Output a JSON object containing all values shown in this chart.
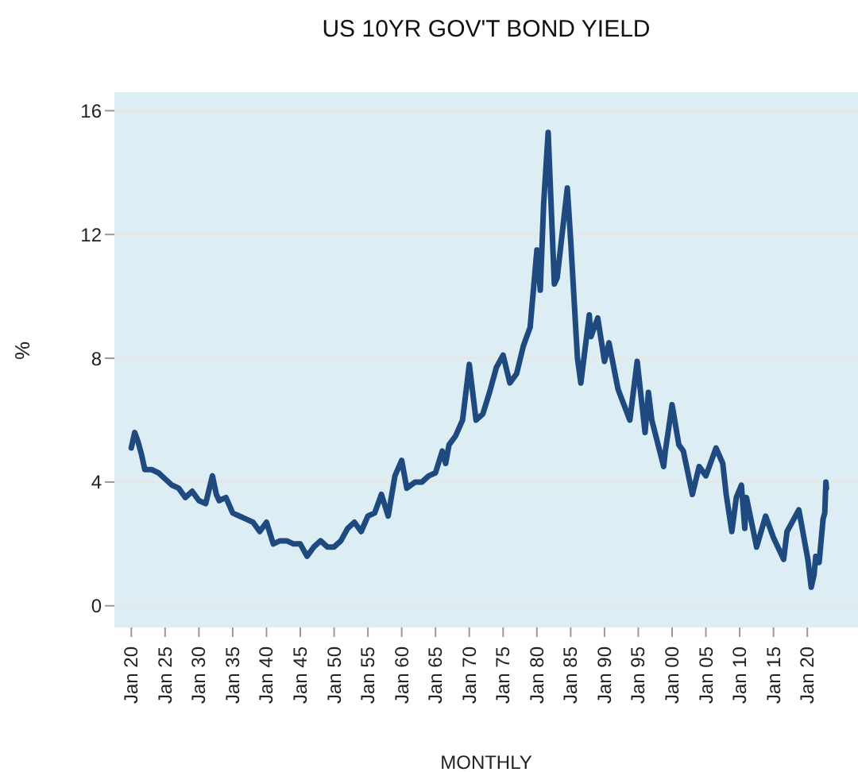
{
  "chart_data": {
    "type": "line",
    "title": "US 10YR GOV'T BOND YIELD",
    "xlabel": "MONTHLY",
    "ylabel": "%",
    "x": [
      "1920-01",
      "1920-07",
      "1921-01",
      "1921-07",
      "1922-01",
      "1923-01",
      "1924-01",
      "1925-01",
      "1926-01",
      "1927-01",
      "1928-01",
      "1929-01",
      "1930-01",
      "1931-01",
      "1932-01",
      "1932-08",
      "1933-01",
      "1934-01",
      "1935-01",
      "1936-01",
      "1937-01",
      "1938-01",
      "1939-01",
      "1940-01",
      "1941-01",
      "1942-01",
      "1943-01",
      "1944-01",
      "1945-01",
      "1946-01",
      "1947-01",
      "1948-01",
      "1949-01",
      "1950-01",
      "1951-01",
      "1952-01",
      "1953-01",
      "1954-01",
      "1955-01",
      "1956-01",
      "1957-01",
      "1958-01",
      "1959-01",
      "1960-01",
      "1960-10",
      "1962-01",
      "1963-01",
      "1964-01",
      "1965-01",
      "1966-01",
      "1966-07",
      "1967-01",
      "1968-01",
      "1969-01",
      "1970-01",
      "1971-01",
      "1972-01",
      "1973-01",
      "1974-01",
      "1975-01",
      "1976-01",
      "1977-01",
      "1978-01",
      "1979-01",
      "1980-01",
      "1980-07",
      "1981-01",
      "1981-09",
      "1982-01",
      "1982-08",
      "1983-01",
      "1984-07",
      "1985-01",
      "1986-01",
      "1986-07",
      "1987-10",
      "1988-01",
      "1989-01",
      "1990-01",
      "1990-09",
      "1992-01",
      "1993-10",
      "1994-11",
      "1996-01",
      "1996-07",
      "1997-01",
      "1998-10",
      "1999-01",
      "2000-01",
      "2001-01",
      "2001-09",
      "2003-01",
      "2004-01",
      "2005-01",
      "2006-07",
      "2007-07",
      "2008-01",
      "2008-11",
      "2009-07",
      "2010-04",
      "2010-10",
      "2011-01",
      "2012-07",
      "2013-11",
      "2015-01",
      "2016-07",
      "2017-01",
      "2018-10",
      "2019-09",
      "2020-02",
      "2020-08",
      "2021-01",
      "2021-04",
      "2021-10",
      "2022-05",
      "2022-08",
      "2022-10",
      "2022-11"
    ],
    "series": [
      {
        "color": "#1f4a7f",
        "values": [
          5.1,
          5.6,
          5.3,
          4.9,
          4.4,
          4.4,
          4.3,
          4.1,
          3.9,
          3.8,
          3.5,
          3.7,
          3.4,
          3.3,
          4.2,
          3.6,
          3.4,
          3.5,
          3.0,
          2.9,
          2.8,
          2.7,
          2.4,
          2.7,
          2.0,
          2.1,
          2.1,
          2.0,
          2.0,
          1.6,
          1.9,
          2.1,
          1.9,
          1.9,
          2.1,
          2.5,
          2.7,
          2.4,
          2.9,
          3.0,
          3.6,
          2.9,
          4.2,
          4.7,
          3.8,
          4.0,
          4.0,
          4.2,
          4.3,
          5.0,
          4.6,
          5.2,
          5.5,
          6.0,
          7.8,
          6.0,
          6.2,
          6.9,
          7.7,
          8.1,
          7.2,
          7.5,
          8.4,
          9.0,
          11.5,
          10.2,
          13.0,
          15.3,
          13.5,
          10.4,
          10.6,
          13.5,
          11.8,
          8.0,
          7.2,
          9.4,
          8.7,
          9.3,
          7.9,
          8.5,
          7.0,
          6.0,
          7.9,
          5.6,
          6.9,
          6.0,
          4.5,
          5.0,
          6.5,
          5.2,
          5.0,
          3.6,
          4.5,
          4.2,
          5.1,
          4.6,
          3.6,
          2.4,
          3.5,
          3.9,
          2.5,
          3.5,
          1.9,
          2.9,
          2.2,
          1.5,
          2.4,
          3.1,
          2.0,
          1.5,
          0.6,
          1.0,
          1.6,
          1.4,
          2.8,
          3.0,
          4.0,
          3.8
        ]
      }
    ],
    "xlim": [
      "1917-07",
      "2027-07"
    ],
    "xticks": [
      {
        "value": "1920-01",
        "label": "Jan 20"
      },
      {
        "value": "1925-01",
        "label": "Jan 25"
      },
      {
        "value": "1930-01",
        "label": "Jan 30"
      },
      {
        "value": "1935-01",
        "label": "Jan 35"
      },
      {
        "value": "1940-01",
        "label": "Jan 40"
      },
      {
        "value": "1945-01",
        "label": "Jan 45"
      },
      {
        "value": "1950-01",
        "label": "Jan 50"
      },
      {
        "value": "1955-01",
        "label": "Jan 55"
      },
      {
        "value": "1960-01",
        "label": "Jan 60"
      },
      {
        "value": "1965-01",
        "label": "Jan 65"
      },
      {
        "value": "1970-01",
        "label": "Jan 70"
      },
      {
        "value": "1975-01",
        "label": "Jan 75"
      },
      {
        "value": "1980-01",
        "label": "Jan 80"
      },
      {
        "value": "1985-01",
        "label": "Jan 85"
      },
      {
        "value": "1990-01",
        "label": "Jan 90"
      },
      {
        "value": "1995-01",
        "label": "Jan 95"
      },
      {
        "value": "2000-01",
        "label": "Jan 00"
      },
      {
        "value": "2005-01",
        "label": "Jan 05"
      },
      {
        "value": "2010-01",
        "label": "Jan 10"
      },
      {
        "value": "2015-01",
        "label": "Jan 15"
      },
      {
        "value": "2020-01",
        "label": "Jan 20"
      }
    ],
    "ylim": [
      -0.7,
      16.6
    ],
    "yticks": [
      0,
      4,
      8,
      12,
      16
    ],
    "grid": "y",
    "legend": false,
    "marker": "none",
    "line_style": "solid"
  }
}
